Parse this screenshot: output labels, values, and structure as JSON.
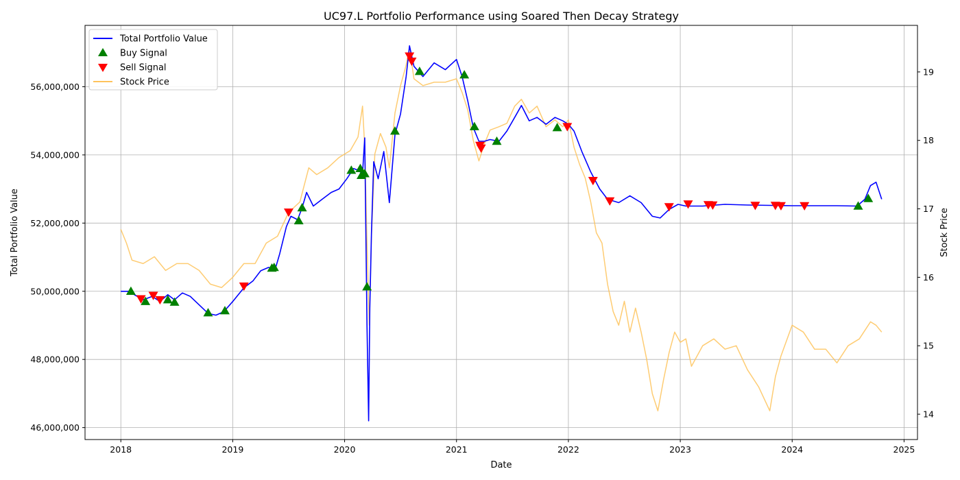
{
  "chart_data": {
    "type": "line",
    "title": "UC97.L Portfolio Performance using Soared Then Decay Strategy",
    "xlabel": "Date",
    "ylabel": "Total Portfolio Value",
    "y2label": "Stock Price",
    "xlim": [
      2017.68,
      2025.12
    ],
    "ylim": [
      45650000,
      57800000
    ],
    "y2lim": [
      13.63,
      19.68
    ],
    "x_ticks": [
      2018,
      2019,
      2020,
      2021,
      2022,
      2023,
      2024,
      2025
    ],
    "y_ticks": [
      46000000,
      48000000,
      50000000,
      52000000,
      54000000,
      56000000
    ],
    "y_tick_labels": [
      "46,000,000",
      "48,000,000",
      "50,000,000",
      "52,000,000",
      "54,000,000",
      "56,000,000"
    ],
    "y2_ticks": [
      14,
      15,
      16,
      17,
      18,
      19
    ],
    "grid": true,
    "legend_position": "top-left",
    "colors": {
      "portfolio": "#0000ff",
      "stock": "#fec35b",
      "buy": "#008000",
      "sell": "#ff0000"
    },
    "legend": [
      {
        "label": "Total Portfolio Value",
        "kind": "line",
        "color": "#0000ff"
      },
      {
        "label": "Buy Signal",
        "kind": "buy",
        "color": "#008000"
      },
      {
        "label": "Sell Signal",
        "kind": "sell",
        "color": "#ff0000"
      },
      {
        "label": "Stock Price",
        "kind": "line",
        "color": "#fec35b"
      }
    ],
    "series": [
      {
        "name": "Total Portfolio Value",
        "axis": "left",
        "x": [
          2018.0,
          2018.08,
          2018.12,
          2018.2,
          2018.28,
          2018.35,
          2018.42,
          2018.48,
          2018.55,
          2018.62,
          2018.7,
          2018.78,
          2018.85,
          2018.92,
          2019.0,
          2019.05,
          2019.1,
          2019.18,
          2019.25,
          2019.32,
          2019.38,
          2019.42,
          2019.48,
          2019.52,
          2019.58,
          2019.62,
          2019.66,
          2019.72,
          2019.8,
          2019.88,
          2019.95,
          2020.02,
          2020.08,
          2020.12,
          2020.16,
          2020.18,
          2020.2,
          2020.215,
          2020.225,
          2020.24,
          2020.26,
          2020.3,
          2020.35,
          2020.4,
          2020.45,
          2020.5,
          2020.55,
          2020.58,
          2020.62,
          2020.7,
          2020.8,
          2020.9,
          2021.0,
          2021.05,
          2021.1,
          2021.15,
          2021.2,
          2021.25,
          2021.3,
          2021.38,
          2021.45,
          2021.52,
          2021.58,
          2021.65,
          2021.72,
          2021.8,
          2021.88,
          2021.95,
          2022.0,
          2022.05,
          2022.12,
          2022.2,
          2022.28,
          2022.35,
          2022.45,
          2022.55,
          2022.65,
          2022.75,
          2022.82,
          2022.9,
          2022.98,
          2023.05,
          2023.2,
          2023.4,
          2023.6,
          2023.8,
          2024.0,
          2024.2,
          2024.4,
          2024.58,
          2024.65,
          2024.7,
          2024.75,
          2024.8
        ],
        "values": [
          50000000,
          50000000,
          49900000,
          49750000,
          49850000,
          49700000,
          49900000,
          49750000,
          49950000,
          49850000,
          49600000,
          49350000,
          49300000,
          49400000,
          49700000,
          49900000,
          50100000,
          50300000,
          50600000,
          50700000,
          50650000,
          51100000,
          51900000,
          52200000,
          52100000,
          52450000,
          52900000,
          52500000,
          52700000,
          52900000,
          53000000,
          53300000,
          53600000,
          53550000,
          53450000,
          54500000,
          49000000,
          46200000,
          49500000,
          51700000,
          53800000,
          53300000,
          54100000,
          52600000,
          54600000,
          55200000,
          56300000,
          57200000,
          56600000,
          56300000,
          56700000,
          56500000,
          56800000,
          56300000,
          55600000,
          54800000,
          54400000,
          54400000,
          54450000,
          54400000,
          54700000,
          55100000,
          55450000,
          55000000,
          55100000,
          54900000,
          55100000,
          55000000,
          54900000,
          54700000,
          54100000,
          53500000,
          53000000,
          52700000,
          52600000,
          52800000,
          52600000,
          52200000,
          52150000,
          52400000,
          52550000,
          52500000,
          52500000,
          52550000,
          52530000,
          52520000,
          52510000,
          52510000,
          52510000,
          52500000,
          52700000,
          53100000,
          53200000,
          52700000
        ]
      },
      {
        "name": "Stock Price",
        "axis": "right",
        "x": [
          2018.0,
          2018.05,
          2018.1,
          2018.2,
          2018.3,
          2018.4,
          2018.5,
          2018.6,
          2018.7,
          2018.8,
          2018.9,
          2019.0,
          2019.1,
          2019.2,
          2019.3,
          2019.4,
          2019.5,
          2019.6,
          2019.68,
          2019.75,
          2019.85,
          2019.95,
          2020.05,
          2020.12,
          2020.16,
          2020.18,
          2020.2,
          2020.22,
          2020.24,
          2020.27,
          2020.32,
          2020.37,
          2020.4,
          2020.45,
          2020.5,
          2020.55,
          2020.58,
          2020.62,
          2020.7,
          2020.8,
          2020.9,
          2021.0,
          2021.05,
          2021.1,
          2021.15,
          2021.2,
          2021.25,
          2021.3,
          2021.38,
          2021.45,
          2021.52,
          2021.58,
          2021.65,
          2021.72,
          2021.8,
          2021.88,
          2021.95,
          2022.0,
          2022.05,
          2022.1,
          2022.15,
          2022.2,
          2022.25,
          2022.3,
          2022.35,
          2022.4,
          2022.45,
          2022.5,
          2022.55,
          2022.6,
          2022.65,
          2022.7,
          2022.75,
          2022.8,
          2022.85,
          2022.9,
          2022.95,
          2023.0,
          2023.05,
          2023.1,
          2023.2,
          2023.3,
          2023.4,
          2023.5,
          2023.6,
          2023.7,
          2023.8,
          2023.85,
          2023.9,
          2024.0,
          2024.1,
          2024.2,
          2024.3,
          2024.4,
          2024.5,
          2024.6,
          2024.7,
          2024.75,
          2024.8
        ],
        "values": [
          16.7,
          16.5,
          16.25,
          16.2,
          16.3,
          16.1,
          16.2,
          16.2,
          16.1,
          15.9,
          15.85,
          16.0,
          16.2,
          16.2,
          16.5,
          16.6,
          16.95,
          17.1,
          17.6,
          17.5,
          17.6,
          17.75,
          17.85,
          18.05,
          18.5,
          17.9,
          16.5,
          15.3,
          16.6,
          17.8,
          18.1,
          17.9,
          17.6,
          18.4,
          18.8,
          19.1,
          19.35,
          18.9,
          18.8,
          18.85,
          18.85,
          18.9,
          18.7,
          18.45,
          18.0,
          17.7,
          17.95,
          18.15,
          18.2,
          18.25,
          18.5,
          18.6,
          18.4,
          18.5,
          18.2,
          18.3,
          18.2,
          18.3,
          17.9,
          17.65,
          17.45,
          17.1,
          16.65,
          16.5,
          15.9,
          15.5,
          15.3,
          15.65,
          15.2,
          15.55,
          15.2,
          14.8,
          14.3,
          14.05,
          14.5,
          14.9,
          15.2,
          15.05,
          15.1,
          14.7,
          15.0,
          15.1,
          14.95,
          15.0,
          14.65,
          14.4,
          14.05,
          14.55,
          14.85,
          15.3,
          15.2,
          14.95,
          14.95,
          14.75,
          15.0,
          15.1,
          15.35,
          15.3,
          15.2
        ]
      }
    ],
    "buy_signals": [
      {
        "x": 2018.09,
        "y": 50000000
      },
      {
        "x": 2018.22,
        "y": 49700000
      },
      {
        "x": 2018.42,
        "y": 49750000
      },
      {
        "x": 2018.48,
        "y": 49680000
      },
      {
        "x": 2018.78,
        "y": 49370000
      },
      {
        "x": 2018.93,
        "y": 49430000
      },
      {
        "x": 2019.35,
        "y": 50680000
      },
      {
        "x": 2019.37,
        "y": 50700000
      },
      {
        "x": 2019.59,
        "y": 52070000
      },
      {
        "x": 2019.62,
        "y": 52450000
      },
      {
        "x": 2020.06,
        "y": 53550000
      },
      {
        "x": 2020.14,
        "y": 53600000
      },
      {
        "x": 2020.15,
        "y": 53400000
      },
      {
        "x": 2020.18,
        "y": 53450000
      },
      {
        "x": 2020.2,
        "y": 50130000
      },
      {
        "x": 2020.45,
        "y": 54700000
      },
      {
        "x": 2020.67,
        "y": 56450000
      },
      {
        "x": 2021.07,
        "y": 56350000
      },
      {
        "x": 2021.16,
        "y": 54830000
      },
      {
        "x": 2021.36,
        "y": 54400000
      },
      {
        "x": 2021.9,
        "y": 54800000
      },
      {
        "x": 2024.59,
        "y": 52500000
      },
      {
        "x": 2024.68,
        "y": 52720000
      }
    ],
    "sell_signals": [
      {
        "x": 2018.18,
        "y": 49780000
      },
      {
        "x": 2018.29,
        "y": 49880000
      },
      {
        "x": 2018.35,
        "y": 49750000
      },
      {
        "x": 2019.1,
        "y": 50150000
      },
      {
        "x": 2019.5,
        "y": 52320000
      },
      {
        "x": 2020.58,
        "y": 56900000
      },
      {
        "x": 2020.6,
        "y": 56750000
      },
      {
        "x": 2021.21,
        "y": 54280000
      },
      {
        "x": 2021.22,
        "y": 54200000
      },
      {
        "x": 2021.99,
        "y": 54830000
      },
      {
        "x": 2022.22,
        "y": 53250000
      },
      {
        "x": 2022.37,
        "y": 52650000
      },
      {
        "x": 2022.9,
        "y": 52480000
      },
      {
        "x": 2023.07,
        "y": 52560000
      },
      {
        "x": 2023.25,
        "y": 52540000
      },
      {
        "x": 2023.29,
        "y": 52530000
      },
      {
        "x": 2023.67,
        "y": 52520000
      },
      {
        "x": 2023.85,
        "y": 52520000
      },
      {
        "x": 2023.9,
        "y": 52510000
      },
      {
        "x": 2024.11,
        "y": 52510000
      }
    ]
  }
}
